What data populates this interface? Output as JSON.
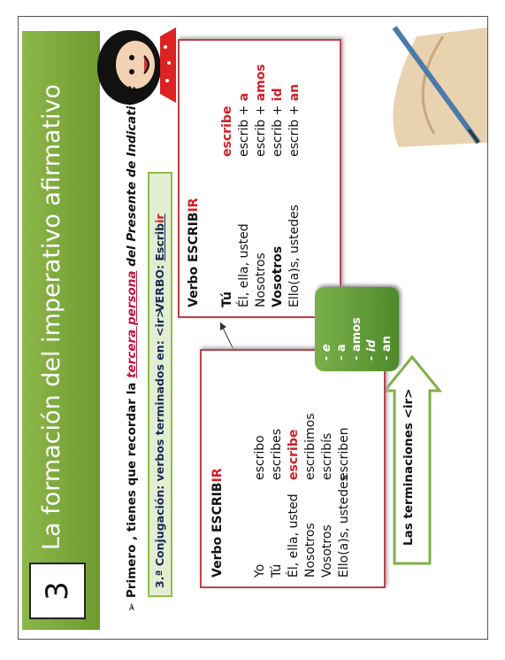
{
  "header": {
    "number": "3",
    "title": "La formación del imperativo afirmativo"
  },
  "intro": {
    "bullet": "➢",
    "prefix": "Primero , tienes que recordar la ",
    "emphasis": "tercera persona",
    "suffix": " del Presente de Indicativo:"
  },
  "conjugation_box": {
    "label": "3.ª Conjugación: verbos terminados en: <ir>",
    "verb_label": "VERBO: ",
    "verb_stem": "Escrib",
    "verb_ending": "ir"
  },
  "indicative_table": {
    "title_stem": "Verbo ESCRIB",
    "title_ending": "IR",
    "rows": [
      [
        "Yo",
        "escribo"
      ],
      [
        "Tú",
        "escribes"
      ],
      [
        "Él, ella, usted",
        "escribe"
      ],
      [
        "Nosotros",
        "escribimos"
      ],
      [
        "Vosotros",
        "escribís"
      ],
      [
        "Ello(a)s, ustedes",
        "escriben"
      ]
    ]
  },
  "imperative_table": {
    "title_stem": "Verbo ESCRIB",
    "title_ending": "IR",
    "rows": [
      {
        "person": "Tú",
        "form": "escribe"
      },
      {
        "person": "Él, ella, usted",
        "stem": "escrib + ",
        "ending": "a"
      },
      {
        "person": "Nosotros",
        "stem": "escrib + ",
        "ending": "amos"
      },
      {
        "person": "Vosotros",
        "stem": "escrib + ",
        "ending": "id"
      },
      {
        "person": "Ello(a)s, ustedes",
        "stem": "escrib + ",
        "ending": "an"
      }
    ]
  },
  "endings": [
    "- e",
    "- a",
    "- amos",
    "- id",
    "- an"
  ],
  "arrow_label": "Las terminaciones <ir>"
}
